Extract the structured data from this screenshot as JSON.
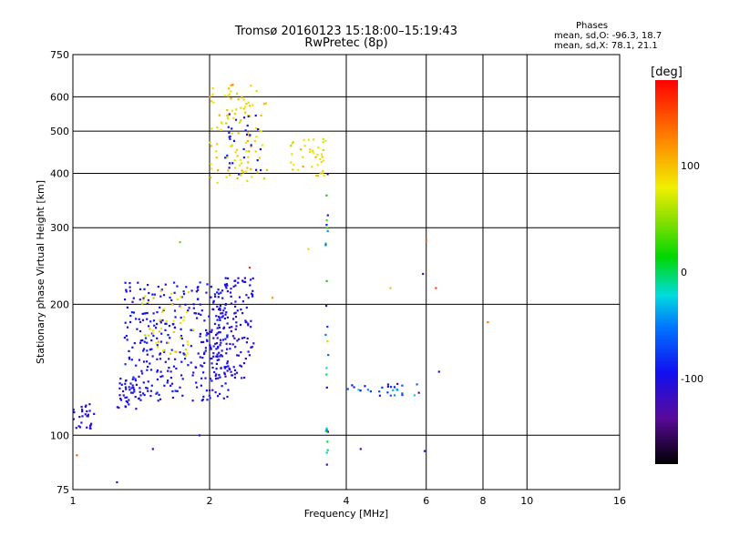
{
  "header": {
    "title": "Tromsø 20160123 15:18:00–15:19:43",
    "subtitle": "RwPretec (8p)"
  },
  "stats": {
    "heading": "Phases",
    "line_o": "mean, sd,O: -96.3, 18.7",
    "line_x": "mean, sd,X:  78.1, 21.1"
  },
  "chart_data": {
    "type": "scatter",
    "xlabel": "Frequency [MHz]",
    "ylabel": "Stationary phase Virtual Height [km]",
    "xscale": "log",
    "yscale": "log",
    "xlim": [
      1,
      16
    ],
    "ylim": [
      75,
      750
    ],
    "xticks": [
      1,
      2,
      4,
      6,
      8,
      10,
      16
    ],
    "yticks": [
      75,
      100,
      200,
      300,
      400,
      500,
      600,
      750
    ],
    "grid": true,
    "colorbar": {
      "label": "[deg]",
      "range": [
        -180,
        180
      ],
      "ticks": [
        100,
        0,
        -100
      ]
    },
    "clusters": [
      {
        "desc": "O-trace low",
        "x_range": [
          1.3,
          2.2
        ],
        "y_range": [
          120,
          225
        ],
        "phase": -100,
        "spread": 15,
        "count": 330
      },
      {
        "desc": "O-trace upper",
        "x_range": [
          2.0,
          2.5
        ],
        "y_range": [
          135,
          230
        ],
        "phase": -105,
        "spread": 12,
        "count": 150
      },
      {
        "desc": "mixed low-band phases",
        "x_range": [
          1.4,
          1.9
        ],
        "y_range": [
          150,
          215
        ],
        "phase": 85,
        "spread": 20,
        "count": 45
      },
      {
        "desc": "F-layer X-trace",
        "x_range": [
          2.0,
          2.7
        ],
        "y_range": [
          380,
          640
        ],
        "phase": 90,
        "spread": 22,
        "count": 110
      },
      {
        "desc": "F-layer O scatter",
        "x_range": [
          2.15,
          2.6
        ],
        "y_range": [
          390,
          560
        ],
        "phase": -95,
        "spread": 15,
        "count": 30
      },
      {
        "desc": "mid-F scatter",
        "x_range": [
          3.0,
          3.6
        ],
        "y_range": [
          390,
          480
        ],
        "phase": 80,
        "spread": 25,
        "count": 40
      },
      {
        "desc": "low-freq start",
        "x_range": [
          1.0,
          1.12
        ],
        "y_range": [
          102,
          118
        ],
        "phase": -105,
        "spread": 10,
        "count": 28
      },
      {
        "desc": "E-band",
        "x_range": [
          1.25,
          1.4
        ],
        "y_range": [
          115,
          135
        ],
        "phase": -100,
        "spread": 15,
        "count": 30
      },
      {
        "desc": "spread 4-6 MHz",
        "x_range": [
          4.0,
          5.8
        ],
        "y_range": [
          122,
          132
        ],
        "phase": -70,
        "spread": 50,
        "count": 28
      },
      {
        "desc": "column near 3.6 MHz",
        "x_range": [
          3.6,
          3.65
        ],
        "y_range": [
          78,
          460
        ],
        "phase": -20,
        "spread": 90,
        "count": 28
      }
    ],
    "points": [
      {
        "x": 1.5,
        "y": 93,
        "phase": -100
      },
      {
        "x": 1.9,
        "y": 100,
        "phase": -100
      },
      {
        "x": 4.3,
        "y": 93,
        "phase": -110
      },
      {
        "x": 5.95,
        "y": 92,
        "phase": -110
      },
      {
        "x": 5.9,
        "y": 235,
        "phase": -110
      },
      {
        "x": 6.3,
        "y": 218,
        "phase": 150
      },
      {
        "x": 6.0,
        "y": 280,
        "phase": 140
      },
      {
        "x": 5.0,
        "y": 218,
        "phase": 100
      },
      {
        "x": 8.2,
        "y": 182,
        "phase": 130
      },
      {
        "x": 6.4,
        "y": 140,
        "phase": -100
      },
      {
        "x": 3.3,
        "y": 268,
        "phase": 90
      },
      {
        "x": 1.72,
        "y": 278,
        "phase": 40
      },
      {
        "x": 2.45,
        "y": 243,
        "phase": 160
      },
      {
        "x": 2.75,
        "y": 207,
        "phase": 120
      },
      {
        "x": 1.25,
        "y": 78,
        "phase": -110
      },
      {
        "x": 1.02,
        "y": 90,
        "phase": 140
      }
    ]
  }
}
